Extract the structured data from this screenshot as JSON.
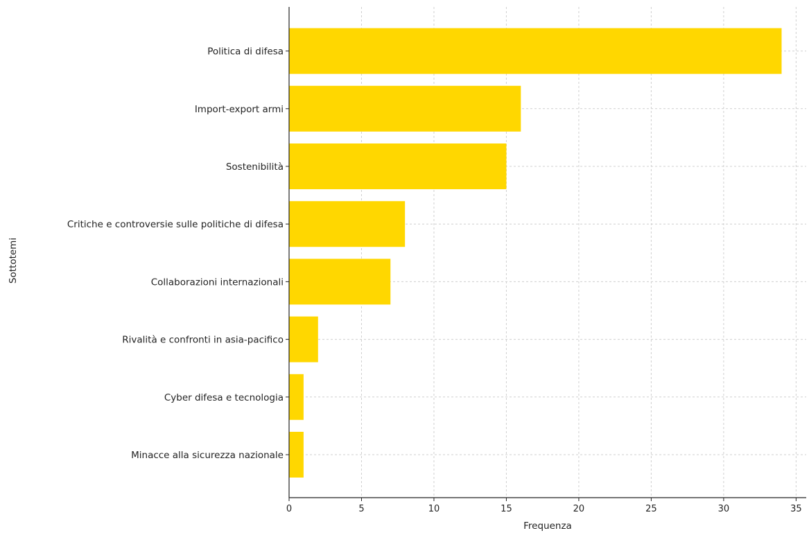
{
  "chart_data": {
    "type": "bar",
    "orientation": "horizontal",
    "title": "",
    "xlabel": "Frequenza",
    "ylabel": "Sottotemi",
    "xlim": [
      0,
      35.7
    ],
    "xticks": [
      0,
      5,
      10,
      15,
      20,
      25,
      30,
      35
    ],
    "grid": true,
    "bar_color": "#FFD700",
    "categories": [
      "Politica di difesa",
      "Import-export armi",
      "Sostenibilità",
      "Critiche e controversie sulle politiche di difesa",
      "Collaborazioni internazionali",
      "Rivalità e confronti in asia-pacifico",
      "Cyber difesa e tecnologia",
      "Minacce alla sicurezza nazionale"
    ],
    "values": [
      34,
      16,
      15,
      8,
      7,
      2,
      1,
      1
    ]
  }
}
